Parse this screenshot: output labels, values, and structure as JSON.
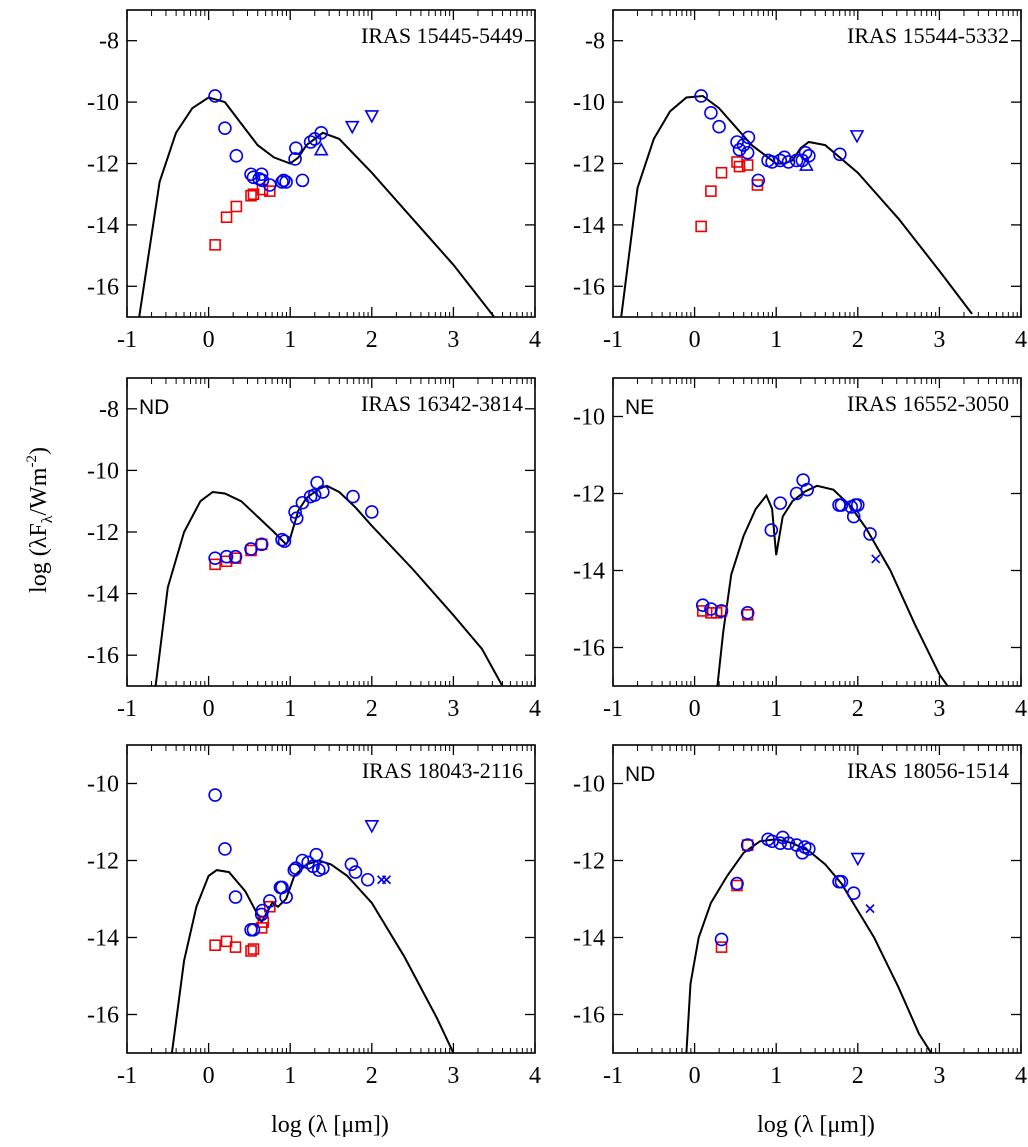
{
  "figure": {
    "ylabel_main": "log (λF",
    "ylabel_sub": "λ",
    "ylabel_unit": "/Wm",
    "ylabel_sup": "-2",
    "ylabel_end": ")",
    "xlabel_left": "log (λ [μm])",
    "xlabel_right": "log (λ [μm])"
  },
  "colors": {
    "model": "#000000",
    "observed": "#0000ee",
    "dereddened": "#ee0000"
  },
  "chart_data": [
    {
      "type": "scatter",
      "title": "IRAS 15445-5449",
      "tag": "",
      "xlim": [
        -1,
        4
      ],
      "ylim": [
        -17,
        -7
      ],
      "xticks": [
        -1,
        0,
        1,
        2,
        3,
        4
      ],
      "yticks": [
        -16,
        -14,
        -12,
        -10,
        -8
      ],
      "model": {
        "x": [
          -0.85,
          -0.6,
          -0.4,
          -0.2,
          0,
          0.2,
          0.4,
          0.6,
          0.8,
          1.0,
          1.1,
          1.2,
          1.4,
          1.6,
          2.0,
          2.5,
          3.0,
          3.5
        ],
        "y": [
          -17,
          -12.6,
          -11.0,
          -10.2,
          -9.85,
          -10.0,
          -10.7,
          -11.4,
          -11.8,
          -12.0,
          -11.8,
          -11.4,
          -11.0,
          -11.2,
          -12.3,
          -13.8,
          -15.3,
          -17
        ]
      },
      "circles": {
        "x": [
          0.08,
          0.2,
          0.34,
          0.52,
          0.55,
          0.62,
          0.65,
          0.66,
          0.75,
          0.9,
          0.92,
          0.95,
          1.06,
          1.07,
          1.15,
          1.25,
          1.3,
          1.38
        ],
        "y": [
          -9.8,
          -10.85,
          -11.75,
          -12.35,
          -12.45,
          -12.5,
          -12.35,
          -12.55,
          -12.7,
          -12.6,
          -12.55,
          -12.6,
          -11.85,
          -11.5,
          -12.55,
          -11.3,
          -11.2,
          -11.0
        ]
      },
      "squares": {
        "x": [
          0.08,
          0.22,
          0.34,
          0.52,
          0.55,
          0.66,
          0.75
        ],
        "y": [
          -14.65,
          -13.75,
          -13.4,
          -13.05,
          -13.0,
          -12.85,
          -12.9
        ]
      },
      "triangles_down": {
        "x": [
          1.76,
          2.0
        ],
        "y": [
          -10.8,
          -10.45
        ]
      },
      "triangles_up": {
        "x": [
          1.38
        ],
        "y": [
          -11.55
        ]
      },
      "crosses": {
        "x": [],
        "y": []
      }
    },
    {
      "type": "scatter",
      "title": "IRAS 15544-5332",
      "tag": "",
      "xlim": [
        -1,
        4
      ],
      "ylim": [
        -17,
        -7
      ],
      "xticks": [
        -1,
        0,
        1,
        2,
        3,
        4
      ],
      "yticks": [
        -16,
        -14,
        -12,
        -10,
        -8
      ],
      "model": {
        "x": [
          -0.9,
          -0.7,
          -0.5,
          -0.3,
          -0.1,
          0.1,
          0.3,
          0.5,
          0.7,
          0.9,
          1.0,
          1.1,
          1.2,
          1.3,
          1.4,
          1.6,
          2.0,
          2.5,
          3.0,
          3.4
        ],
        "y": [
          -17,
          -12.8,
          -11.2,
          -10.3,
          -9.85,
          -9.8,
          -10.2,
          -10.8,
          -11.4,
          -11.8,
          -12.0,
          -12.0,
          -11.9,
          -11.5,
          -11.3,
          -11.4,
          -12.3,
          -13.8,
          -15.5,
          -16.9
        ]
      },
      "circles": {
        "x": [
          0.08,
          0.2,
          0.3,
          0.52,
          0.55,
          0.6,
          0.65,
          0.66,
          0.78,
          0.9,
          0.95,
          1.05,
          1.1,
          1.15,
          1.25,
          1.32,
          1.36,
          1.4,
          1.78
        ],
        "y": [
          -9.8,
          -10.35,
          -10.8,
          -11.3,
          -11.55,
          -11.4,
          -11.65,
          -11.15,
          -12.55,
          -11.9,
          -11.95,
          -11.9,
          -11.8,
          -11.95,
          -11.9,
          -11.9,
          -11.65,
          -11.75,
          -11.7
        ]
      },
      "squares": {
        "x": [
          0.08,
          0.2,
          0.33,
          0.52,
          0.55,
          0.65,
          0.77
        ],
        "y": [
          -14.05,
          -12.9,
          -12.3,
          -11.95,
          -12.1,
          -12.05,
          -12.7
        ]
      },
      "triangles_down": {
        "x": [
          1.99
        ],
        "y": [
          -11.1
        ]
      },
      "triangles_up": {
        "x": [
          1.37
        ],
        "y": [
          -12.05
        ]
      },
      "crosses": {
        "x": [],
        "y": []
      }
    },
    {
      "type": "scatter",
      "title": "IRAS 16342-3814",
      "tag": "ND",
      "xlim": [
        -1,
        4
      ],
      "ylim": [
        -17,
        -7
      ],
      "xticks": [
        -1,
        0,
        1,
        2,
        3,
        4
      ],
      "yticks": [
        -16,
        -14,
        -12,
        -10,
        -8
      ],
      "model": {
        "x": [
          -0.65,
          -0.5,
          -0.3,
          -0.1,
          0.05,
          0.2,
          0.4,
          0.6,
          0.8,
          0.95,
          1.0,
          1.1,
          1.2,
          1.35,
          1.45,
          1.6,
          1.8,
          2.0,
          2.5,
          3.0,
          3.35,
          3.6
        ],
        "y": [
          -17,
          -13.8,
          -12.0,
          -11.0,
          -10.7,
          -10.75,
          -11.0,
          -11.5,
          -12.0,
          -12.4,
          -12.2,
          -11.3,
          -10.9,
          -10.6,
          -10.5,
          -10.7,
          -11.2,
          -11.8,
          -13.2,
          -14.7,
          -15.8,
          -17
        ]
      },
      "circles": {
        "x": [
          0.08,
          0.22,
          0.33,
          0.52,
          0.65,
          0.9,
          0.93,
          1.06,
          1.08,
          1.15,
          1.25,
          1.3,
          1.33,
          1.4,
          1.77,
          2.0
        ],
        "y": [
          -12.85,
          -12.8,
          -12.8,
          -12.55,
          -12.4,
          -12.25,
          -12.3,
          -11.35,
          -11.55,
          -11.05,
          -10.85,
          -10.8,
          -10.4,
          -10.7,
          -10.85,
          -11.35
        ]
      },
      "squares": {
        "x": [
          0.08,
          0.22,
          0.33,
          0.52,
          0.65
        ],
        "y": [
          -13.05,
          -12.95,
          -12.85,
          -12.6,
          -12.4
        ]
      },
      "triangles_down": {
        "x": [],
        "y": []
      },
      "triangles_up": {
        "x": [],
        "y": []
      },
      "crosses": {
        "x": [],
        "y": []
      }
    },
    {
      "type": "scatter",
      "title": "IRAS 16552-3050",
      "tag": "NE",
      "xlim": [
        -1,
        4
      ],
      "ylim": [
        -17,
        -9
      ],
      "xticks": [
        -1,
        0,
        1,
        2,
        3,
        4
      ],
      "yticks": [
        -16,
        -14,
        -12,
        -10
      ],
      "model": {
        "x": [
          0.28,
          0.35,
          0.45,
          0.6,
          0.75,
          0.88,
          0.95,
          1.0,
          1.08,
          1.2,
          1.35,
          1.5,
          1.7,
          1.9,
          2.1,
          2.4,
          2.7,
          3.0,
          3.1
        ],
        "y": [
          -17,
          -15.6,
          -14.1,
          -13.1,
          -12.4,
          -12.05,
          -12.4,
          -13.6,
          -12.6,
          -12.2,
          -11.95,
          -11.8,
          -11.9,
          -12.3,
          -12.9,
          -14.0,
          -15.4,
          -16.7,
          -17
        ]
      },
      "circles": {
        "x": [
          0.1,
          0.2,
          0.33,
          0.65,
          0.94,
          1.05,
          1.25,
          1.33,
          1.38,
          1.77,
          1.8,
          1.92,
          1.95,
          1.97,
          2.0,
          2.15
        ],
        "y": [
          -14.9,
          -15.0,
          -15.05,
          -15.1,
          -12.95,
          -12.25,
          -12.0,
          -11.65,
          -11.9,
          -12.3,
          -12.3,
          -12.35,
          -12.6,
          -12.3,
          -12.3,
          -13.05
        ]
      },
      "squares": {
        "x": [
          0.1,
          0.2,
          0.27,
          0.33,
          0.65
        ],
        "y": [
          -15.05,
          -15.1,
          -15.1,
          -15.05,
          -15.15
        ]
      },
      "triangles_down": {
        "x": [],
        "y": []
      },
      "triangles_up": {
        "x": [],
        "y": []
      },
      "crosses": {
        "x": [
          2.22
        ],
        "y": [
          -13.7
        ]
      }
    },
    {
      "type": "scatter",
      "title": "IRAS 18043-2116",
      "tag": "",
      "xlim": [
        -1,
        4
      ],
      "ylim": [
        -17,
        -9
      ],
      "xticks": [
        -1,
        0,
        1,
        2,
        3,
        4
      ],
      "yticks": [
        -16,
        -14,
        -12,
        -10
      ],
      "model": {
        "x": [
          -0.45,
          -0.3,
          -0.15,
          0,
          0.1,
          0.25,
          0.45,
          0.65,
          0.78,
          0.85,
          0.95,
          1.05,
          1.2,
          1.35,
          1.5,
          1.7,
          2.0,
          2.4,
          2.8,
          3.0
        ],
        "y": [
          -17,
          -14.6,
          -13.2,
          -12.4,
          -12.25,
          -12.3,
          -12.8,
          -13.6,
          -13.1,
          -13.2,
          -13.0,
          -12.4,
          -12.1,
          -12.0,
          -12.1,
          -12.4,
          -13.1,
          -14.5,
          -16.1,
          -17
        ]
      },
      "circles": {
        "x": [
          0.08,
          0.2,
          0.33,
          0.52,
          0.55,
          0.65,
          0.66,
          0.75,
          0.88,
          0.9,
          0.95,
          1.05,
          1.07,
          1.15,
          1.22,
          1.28,
          1.32,
          1.35,
          1.4,
          1.75,
          1.8,
          1.95
        ],
        "y": [
          -10.3,
          -11.7,
          -12.95,
          -13.8,
          -13.8,
          -13.4,
          -13.3,
          -13.05,
          -12.7,
          -12.7,
          -12.95,
          -12.25,
          -12.2,
          -12.0,
          -12.05,
          -12.15,
          -11.85,
          -12.25,
          -12.2,
          -12.1,
          -12.3,
          -12.5
        ]
      },
      "squares": {
        "x": [
          0.08,
          0.22,
          0.33,
          0.52,
          0.55,
          0.65,
          0.67,
          0.75
        ],
        "y": [
          -14.2,
          -14.1,
          -14.25,
          -14.35,
          -14.3,
          -13.75,
          -13.6,
          -13.2
        ]
      },
      "triangles_down": {
        "x": [
          2.0
        ],
        "y": [
          -11.1
        ]
      },
      "triangles_up": {
        "x": [],
        "y": []
      },
      "crosses": {
        "x": [
          2.12,
          2.18
        ],
        "y": [
          -12.5,
          -12.5
        ]
      }
    },
    {
      "type": "scatter",
      "title": "IRAS 18056-1514",
      "tag": "ND",
      "xlim": [
        -1,
        4
      ],
      "ylim": [
        -17,
        -9
      ],
      "xticks": [
        -1,
        0,
        1,
        2,
        3,
        4
      ],
      "yticks": [
        -16,
        -14,
        -12,
        -10
      ],
      "model": {
        "x": [
          -0.1,
          -0.05,
          0.05,
          0.2,
          0.4,
          0.6,
          0.8,
          1.0,
          1.2,
          1.4,
          1.6,
          1.8,
          2.0,
          2.2,
          2.5,
          2.75,
          2.9
        ],
        "y": [
          -17,
          -15.2,
          -14.0,
          -13.1,
          -12.4,
          -11.8,
          -11.5,
          -11.45,
          -11.55,
          -11.75,
          -12.1,
          -12.6,
          -13.3,
          -14.0,
          -15.3,
          -16.5,
          -17
        ]
      },
      "circles": {
        "x": [
          0.33,
          0.52,
          0.65,
          0.9,
          0.95,
          1.05,
          1.08,
          1.15,
          1.25,
          1.32,
          1.35,
          1.4,
          1.77,
          1.8,
          1.95
        ],
        "y": [
          -14.05,
          -12.6,
          -11.6,
          -11.45,
          -11.5,
          -11.55,
          -11.4,
          -11.55,
          -11.6,
          -11.8,
          -11.65,
          -11.7,
          -12.55,
          -12.55,
          -12.85
        ]
      },
      "squares": {
        "x": [
          0.33,
          0.52,
          0.65
        ],
        "y": [
          -14.25,
          -12.65,
          -11.6
        ]
      },
      "triangles_down": {
        "x": [
          2.0
        ],
        "y": [
          -11.95
        ]
      },
      "triangles_up": {
        "x": [],
        "y": []
      },
      "crosses": {
        "x": [
          2.15
        ],
        "y": [
          -13.25
        ]
      }
    }
  ]
}
